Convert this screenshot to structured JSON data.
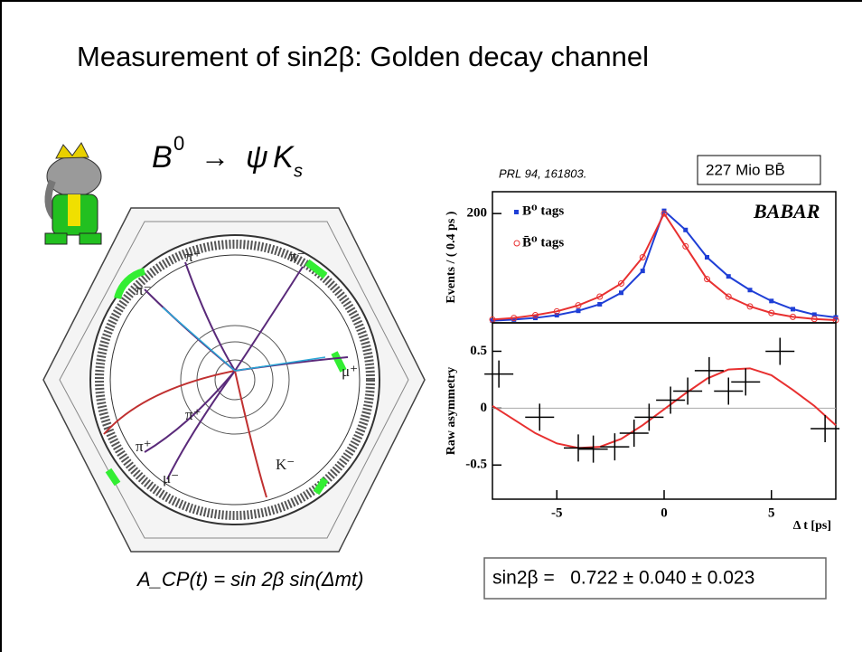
{
  "slide": {
    "title": "Measurement of sin2β: Golden decay channel",
    "decay": {
      "b": "B",
      "sup": "0",
      "arrow": "→",
      "psi": "ψ",
      "k": "K",
      "sub": "s"
    },
    "reference": "PRL 94, 161803.",
    "sample": "227 Mio BB̄",
    "detector_labels": [
      "π⁺",
      "π⁻",
      "π⁻",
      "μ⁺",
      "π⁺",
      "π⁺",
      "μ⁻",
      "K⁻"
    ],
    "formula": "A_CP(t) = sin 2β sin(Δmt)",
    "result": "sin2β =   0.722 ± 0.040 ± 0.023",
    "brand": "BABAR"
  },
  "chart_data": [
    {
      "type": "line",
      "y_label": "Events / ( 0.4 ps )",
      "x": [
        -8,
        -7,
        -6,
        -5,
        -4,
        -3,
        -2,
        -1,
        0,
        1,
        2,
        3,
        4,
        5,
        6,
        7,
        8
      ],
      "series": [
        {
          "name": "B⁰ tags",
          "color": "#1f3fd6",
          "values": [
            4,
            6,
            9,
            14,
            22,
            34,
            55,
            95,
            205,
            170,
            120,
            85,
            60,
            40,
            25,
            15,
            10
          ]
        },
        {
          "name": "B̄⁰ tags",
          "color": "#e83030",
          "values": [
            6,
            9,
            14,
            21,
            32,
            48,
            72,
            120,
            200,
            140,
            80,
            48,
            30,
            18,
            11,
            7,
            5
          ]
        }
      ],
      "xlim": [
        -8,
        8
      ],
      "ylim": [
        0,
        240
      ],
      "yticks": [
        200
      ]
    },
    {
      "type": "scatter",
      "y_label": "Raw asymmetry",
      "x_label": "Δ t [ps]",
      "x": [
        -7.7,
        -5.8,
        -4,
        -3.3,
        -2.3,
        -1.4,
        -0.7,
        0.3,
        1.1,
        2.1,
        3,
        3.8,
        5.4,
        7.5
      ],
      "values": [
        0.3,
        -0.08,
        -0.35,
        -0.36,
        -0.34,
        -0.22,
        -0.08,
        0.07,
        0.15,
        0.33,
        0.15,
        0.23,
        0.5,
        -0.18
      ],
      "fit": {
        "color": "#e83030",
        "x": [
          -8,
          -7,
          -6,
          -5,
          -4,
          -3,
          -2,
          -1,
          0,
          1,
          2,
          3,
          4,
          5,
          6,
          7,
          8
        ],
        "values": [
          0.02,
          -0.1,
          -0.22,
          -0.31,
          -0.35,
          -0.34,
          -0.27,
          -0.15,
          -0.01,
          0.13,
          0.26,
          0.34,
          0.35,
          0.29,
          0.16,
          0.02,
          -0.15
        ]
      },
      "xlim": [
        -8,
        8
      ],
      "ylim": [
        -0.8,
        0.75
      ],
      "xticks": [
        -5,
        0,
        5
      ],
      "yticks": [
        -0.5,
        0,
        0.5
      ]
    }
  ]
}
